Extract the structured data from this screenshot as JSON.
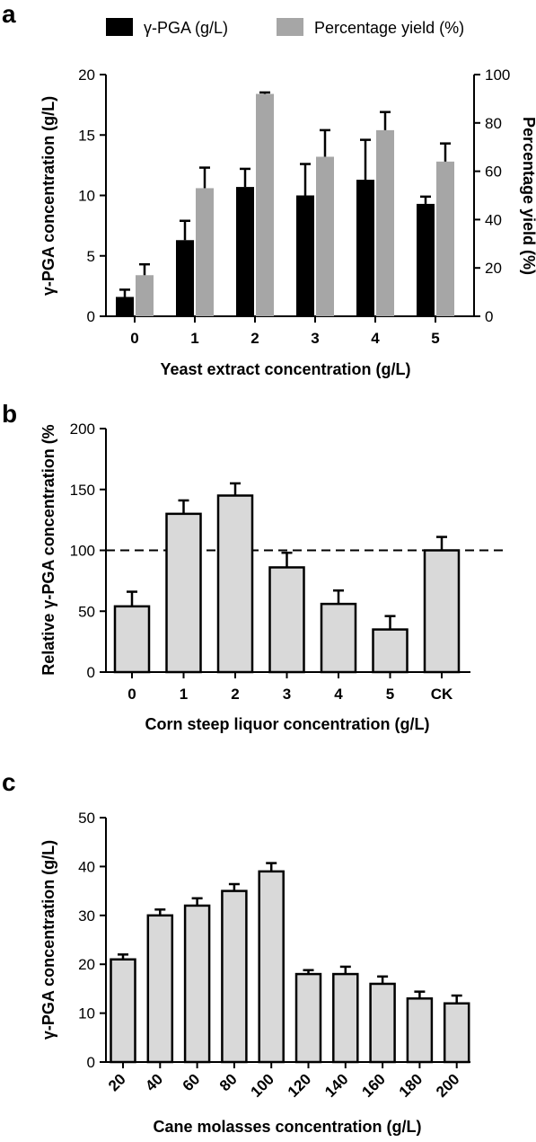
{
  "chart_data": [
    {
      "panel": "a",
      "type": "bar",
      "categories": [
        "0",
        "1",
        "2",
        "3",
        "4",
        "5"
      ],
      "xlabel": "Yeast extract concentration (g/L)",
      "ylabel": "γ-PGA concentration (g/L)",
      "y2label": "Percentage yield (%)",
      "ylim": [
        0,
        20
      ],
      "y2lim": [
        0,
        100
      ],
      "yticks": [
        "0",
        "5",
        "10",
        "15",
        "20"
      ],
      "y2ticks": [
        "0",
        "20",
        "40",
        "60",
        "80",
        "100"
      ],
      "legend_position": "top",
      "series": [
        {
          "name": "γ-PGA (g/L)",
          "axis": "left",
          "color": "#000000",
          "values": [
            1.6,
            6.3,
            10.7,
            10.0,
            11.3,
            9.3
          ],
          "errors": [
            0.6,
            1.6,
            1.5,
            2.6,
            3.3,
            0.6
          ]
        },
        {
          "name": "Percentage yield (%)",
          "axis": "right",
          "color": "#a6a6a6",
          "values": [
            17,
            53,
            92,
            66,
            77,
            64
          ],
          "errors": [
            4.5,
            8.5,
            0.6,
            11,
            7.5,
            7.5
          ]
        }
      ]
    },
    {
      "panel": "b",
      "type": "bar",
      "categories": [
        "0",
        "1",
        "2",
        "3",
        "4",
        "5",
        "CK"
      ],
      "xlabel": "Corn steep liquor concentration (g/L)",
      "ylabel": "Relative γ-PGA concentration (%",
      "ylim": [
        0,
        200
      ],
      "yticks": [
        "0",
        "50",
        "100",
        "150",
        "200"
      ],
      "reference_line": 100,
      "bar_color": "#d9d9d9",
      "values": [
        54,
        130,
        145,
        86,
        56,
        35,
        100
      ],
      "errors": [
        12,
        11,
        10,
        12,
        11,
        11,
        11
      ]
    },
    {
      "panel": "c",
      "type": "bar",
      "categories": [
        "20",
        "40",
        "60",
        "80",
        "100",
        "120",
        "140",
        "160",
        "180",
        "200"
      ],
      "xlabel": "Cane molasses concentration (g/L)",
      "ylabel": "γ-PGA concentration (g/L)",
      "ylim": [
        0,
        50
      ],
      "yticks": [
        "0",
        "10",
        "20",
        "30",
        "40",
        "50"
      ],
      "bar_color": "#d9d9d9",
      "values": [
        21,
        30,
        32,
        35,
        39,
        18,
        18,
        16,
        13,
        12
      ],
      "errors": [
        1.0,
        1.2,
        1.5,
        1.4,
        1.7,
        0.8,
        1.5,
        1.5,
        1.4,
        1.6
      ]
    }
  ]
}
